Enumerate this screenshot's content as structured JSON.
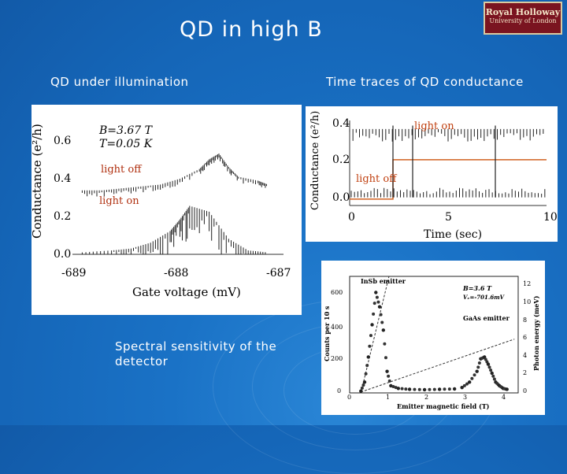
{
  "slide": {
    "title": "QD in high B",
    "logo_line1": "Royal Holloway",
    "logo_line2": "University of London"
  },
  "captions": {
    "left": "QD under illumination",
    "right": "Time traces of QD conductance",
    "bottom_left": "Spectral sensitivity of the\ndetector"
  },
  "chart_data": [
    {
      "type": "scatter",
      "xlabel": "Gate voltage (mV)",
      "ylabel": "Conductance (e²/h)",
      "xticks": [
        "-689",
        "-688",
        "-687"
      ],
      "yticks": [
        "0.6",
        "0.4",
        "0.2",
        "0.0"
      ],
      "xlim": [
        -689,
        -687
      ],
      "ylim": [
        0,
        0.65
      ],
      "annotations": [
        "B=3.67 T",
        "T=0.05 K",
        "light off",
        "light on"
      ],
      "series": [
        {
          "name": "light off",
          "x": [
            -688.9,
            -688.7,
            -688.5,
            -688.3,
            -688.1,
            -687.9,
            -687.7,
            -687.6,
            -687.5,
            -687.4,
            -687.3,
            -687.1,
            -687.0
          ],
          "values": [
            0.33,
            0.33,
            0.34,
            0.35,
            0.36,
            0.39,
            0.44,
            0.49,
            0.52,
            0.45,
            0.4,
            0.38,
            0.36
          ]
        },
        {
          "name": "light on",
          "x": [
            -688.9,
            -688.6,
            -688.4,
            -688.2,
            -688.0,
            -687.9,
            -687.8,
            -687.6,
            -687.4,
            -687.2,
            -687.0
          ],
          "values": [
            0.01,
            0.02,
            0.03,
            0.06,
            0.12,
            0.18,
            0.25,
            0.22,
            0.08,
            0.02,
            0.01
          ]
        }
      ]
    },
    {
      "type": "line",
      "xlabel": "Time (sec)",
      "ylabel": "Conductance (e²/h)",
      "xticks": [
        "0",
        "5",
        "10"
      ],
      "yticks": [
        "0.4",
        "0.2",
        "0.0"
      ],
      "xlim": [
        0,
        10
      ],
      "ylim": [
        -0.02,
        0.45
      ],
      "annotations": [
        "light on",
        "light off"
      ],
      "series": [
        {
          "name": "light",
          "x": [
            0,
            2.2,
            2.2,
            10
          ],
          "values": [
            -0.01,
            -0.01,
            0.22,
            0.22
          ]
        }
      ]
    },
    {
      "type": "scatter",
      "xlabel": "Emitter magnetic field (T)",
      "ylabel": "Counts per 10 s",
      "y2label": "Photon energy (meV)",
      "xticks": [
        "0",
        "1",
        "2",
        "3",
        "4"
      ],
      "yticks": [
        "600",
        "400",
        "200",
        "0"
      ],
      "y2ticks": [
        "12",
        "10",
        "8",
        "6",
        "4",
        "2",
        "0"
      ],
      "xlim": [
        0,
        4.5
      ],
      "ylim": [
        0,
        650
      ],
      "annotations": [
        "InSb emitter",
        "GaAs emitter",
        "B=3.6 T",
        "Vₑ=-701.6mV"
      ],
      "series": [
        {
          "name": "InSb emitter",
          "x": [
            0.3,
            0.4,
            0.5,
            0.6,
            0.7,
            0.8,
            0.9,
            1.0,
            1.1,
            1.3,
            1.6,
            2.0,
            2.4,
            2.8
          ],
          "values": [
            10,
            60,
            200,
            380,
            560,
            480,
            350,
            120,
            40,
            25,
            20,
            18,
            20,
            22
          ]
        },
        {
          "name": "GaAs emitter",
          "x": [
            3.0,
            3.2,
            3.4,
            3.5,
            3.6,
            3.7,
            3.8,
            3.9,
            4.0,
            4.1,
            4.2
          ],
          "values": [
            30,
            60,
            120,
            190,
            200,
            160,
            110,
            60,
            40,
            25,
            20
          ]
        }
      ]
    }
  ]
}
